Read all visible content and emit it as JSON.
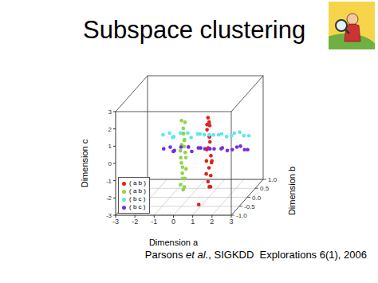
{
  "slide": {
    "title": "Subspace clustering",
    "citation": [
      "Parsons ",
      "et al.",
      ", SIGKDD  Explorations 6(1), 2006"
    ]
  },
  "chart_data": {
    "type": "scatter3d",
    "x_label": "Dimension a",
    "y_label": "Dimension b",
    "z_label": "Dimension c",
    "xlim": [
      -3,
      3
    ],
    "xticks": [
      -3,
      -2,
      -1,
      0,
      1,
      2,
      3
    ],
    "ylim": [
      -1,
      1
    ],
    "yticks": [
      {
        "value": -1,
        "label": "-1.0"
      },
      {
        "value": -0.5,
        "label": "-0.5"
      },
      {
        "value": 0,
        "label": "0.0"
      },
      {
        "value": 0.5,
        "label": "0.5"
      },
      {
        "value": 1,
        "label": "1.0"
      }
    ],
    "zlim": [
      -3,
      3
    ],
    "zticks": [
      -3,
      -2,
      -1,
      0,
      1,
      2,
      3
    ],
    "legend": "lower left",
    "series": [
      {
        "name": "( a b )",
        "color": "#e0201b",
        "values": [
          [
            0.8,
            0.2,
            1.4
          ],
          [
            0.9,
            0.15,
            1.2
          ],
          [
            0.85,
            0.25,
            0.9
          ],
          [
            0.75,
            0.2,
            0.7
          ],
          [
            0.95,
            0.1,
            0.4
          ],
          [
            0.8,
            0.3,
            0.2
          ],
          [
            0.9,
            0.2,
            0.0
          ],
          [
            0.85,
            0.15,
            -0.3
          ],
          [
            0.7,
            0.25,
            -0.5
          ],
          [
            0.95,
            0.2,
            -0.8
          ],
          [
            0.8,
            0.1,
            -1.0
          ],
          [
            0.9,
            0.3,
            -1.3
          ],
          [
            0.85,
            0.2,
            -1.5
          ],
          [
            0.75,
            0.15,
            -1.8
          ],
          [
            0.9,
            0.25,
            -2.0
          ],
          [
            0.8,
            0.2,
            -2.3
          ],
          [
            0.95,
            0.1,
            -2.5
          ],
          [
            0.85,
            0.3,
            -2.7
          ],
          [
            0.9,
            -0.5,
            -2.9
          ],
          [
            0.75,
            0.2,
            1.0
          ],
          [
            1.0,
            0.2,
            -1.1
          ]
        ]
      },
      {
        "name": "( a b )",
        "color": "#8fd44a",
        "values": [
          [
            -0.2,
            -0.25,
            1.7
          ],
          [
            -0.1,
            -0.15,
            1.5
          ],
          [
            -0.15,
            -0.2,
            1.2
          ],
          [
            -0.05,
            -0.3,
            1.0
          ],
          [
            -0.25,
            -0.1,
            0.8
          ],
          [
            -0.1,
            -0.2,
            0.5
          ],
          [
            -0.2,
            -0.25,
            0.3
          ],
          [
            -0.15,
            -0.15,
            0.1
          ],
          [
            -0.05,
            -0.2,
            -0.2
          ],
          [
            -0.2,
            -0.3,
            -0.4
          ],
          [
            -0.1,
            -0.1,
            -0.6
          ],
          [
            -0.25,
            -0.2,
            -0.8
          ],
          [
            -0.15,
            -0.25,
            -1.0
          ],
          [
            -0.05,
            -0.15,
            -1.2
          ],
          [
            -0.2,
            -0.2,
            -1.4
          ],
          [
            -0.1,
            -0.3,
            -1.6
          ],
          [
            -0.15,
            -0.1,
            -1.8
          ],
          [
            -0.25,
            -0.25,
            -2.0
          ],
          [
            -0.1,
            -0.2,
            -2.2
          ],
          [
            -0.2,
            -0.15,
            -2.4
          ],
          [
            -0.05,
            -0.25,
            0.6
          ],
          [
            -0.3,
            -0.2,
            -0.1
          ]
        ]
      },
      {
        "name": "( b c )",
        "color": "#5ee6f0",
        "values": [
          [
            -1.7,
            0.4,
            0.2
          ],
          [
            -1.4,
            0.45,
            0.25
          ],
          [
            -1.1,
            0.35,
            0.15
          ],
          [
            -0.8,
            0.4,
            0.3
          ],
          [
            -0.5,
            0.5,
            0.2
          ],
          [
            -0.2,
            0.35,
            0.1
          ],
          [
            0.1,
            0.4,
            0.25
          ],
          [
            0.4,
            0.45,
            0.15
          ],
          [
            0.7,
            0.4,
            0.2
          ],
          [
            1.0,
            0.3,
            0.3
          ],
          [
            1.3,
            0.45,
            0.2
          ],
          [
            1.6,
            0.4,
            0.1
          ],
          [
            1.9,
            0.35,
            0.2
          ],
          [
            2.2,
            0.5,
            0.25
          ],
          [
            2.5,
            0.4,
            0.15
          ],
          [
            2.8,
            0.35,
            0.2
          ],
          [
            -1.2,
            0.4,
            0.05
          ],
          [
            0.3,
            0.3,
            0.35
          ],
          [
            1.1,
            0.5,
            0.1
          ],
          [
            2.0,
            0.4,
            0.3
          ]
        ]
      },
      {
        "name": "( b c )",
        "color": "#7a2be2",
        "values": [
          [
            -1.5,
            0.2,
            -0.4
          ],
          [
            -1.2,
            0.25,
            -0.35
          ],
          [
            -0.9,
            0.15,
            -0.45
          ],
          [
            -0.6,
            0.2,
            -0.3
          ],
          [
            -0.3,
            0.3,
            -0.4
          ],
          [
            0.0,
            0.15,
            -0.5
          ],
          [
            0.3,
            0.2,
            -0.35
          ],
          [
            0.6,
            0.25,
            -0.45
          ],
          [
            0.9,
            0.2,
            -0.4
          ],
          [
            1.2,
            0.1,
            -0.3
          ],
          [
            1.5,
            0.25,
            -0.4
          ],
          [
            1.8,
            0.2,
            -0.5
          ],
          [
            2.1,
            0.15,
            -0.4
          ],
          [
            2.4,
            0.3,
            -0.35
          ],
          [
            2.7,
            0.2,
            -0.45
          ],
          [
            2.9,
            0.15,
            -0.4
          ],
          [
            -1.0,
            0.2,
            -0.55
          ],
          [
            0.5,
            0.1,
            -0.25
          ],
          [
            1.4,
            0.3,
            -0.5
          ],
          [
            2.3,
            0.2,
            -0.3
          ]
        ]
      }
    ]
  }
}
